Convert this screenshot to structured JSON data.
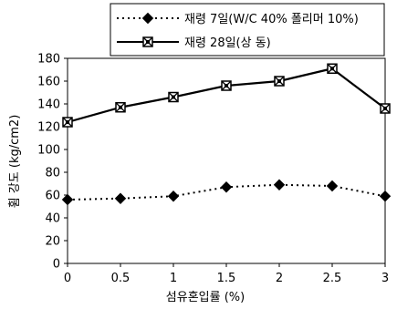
{
  "chart_data": {
    "type": "line",
    "x": [
      0,
      0.5,
      1,
      1.5,
      2,
      2.5,
      3
    ],
    "xticks": [
      "0",
      "0.5",
      "1",
      "1.5",
      "2",
      "2.5",
      "3"
    ],
    "yticks": [
      "0",
      "20",
      "40",
      "60",
      "80",
      "100",
      "120",
      "140",
      "160",
      "180"
    ],
    "xlim": [
      0,
      3
    ],
    "ylim": [
      0,
      180
    ],
    "xlabel": "섬유혼입률 (%)",
    "ylabel": "휨 강도 (kg/cm2)",
    "grid": false,
    "legend_position": "top-right",
    "series": [
      {
        "name": "재령 7일(W/C 40% 폴리머 10%)",
        "values": [
          56,
          57,
          59,
          67,
          69,
          68,
          59
        ],
        "line_style": "dotted",
        "marker": "diamond",
        "color": "#000000"
      },
      {
        "name": "재령 28일(상 동)",
        "values": [
          124,
          137,
          146,
          156,
          160,
          171,
          136
        ],
        "line_style": "solid",
        "marker": "crossed-square",
        "color": "#000000"
      }
    ]
  }
}
